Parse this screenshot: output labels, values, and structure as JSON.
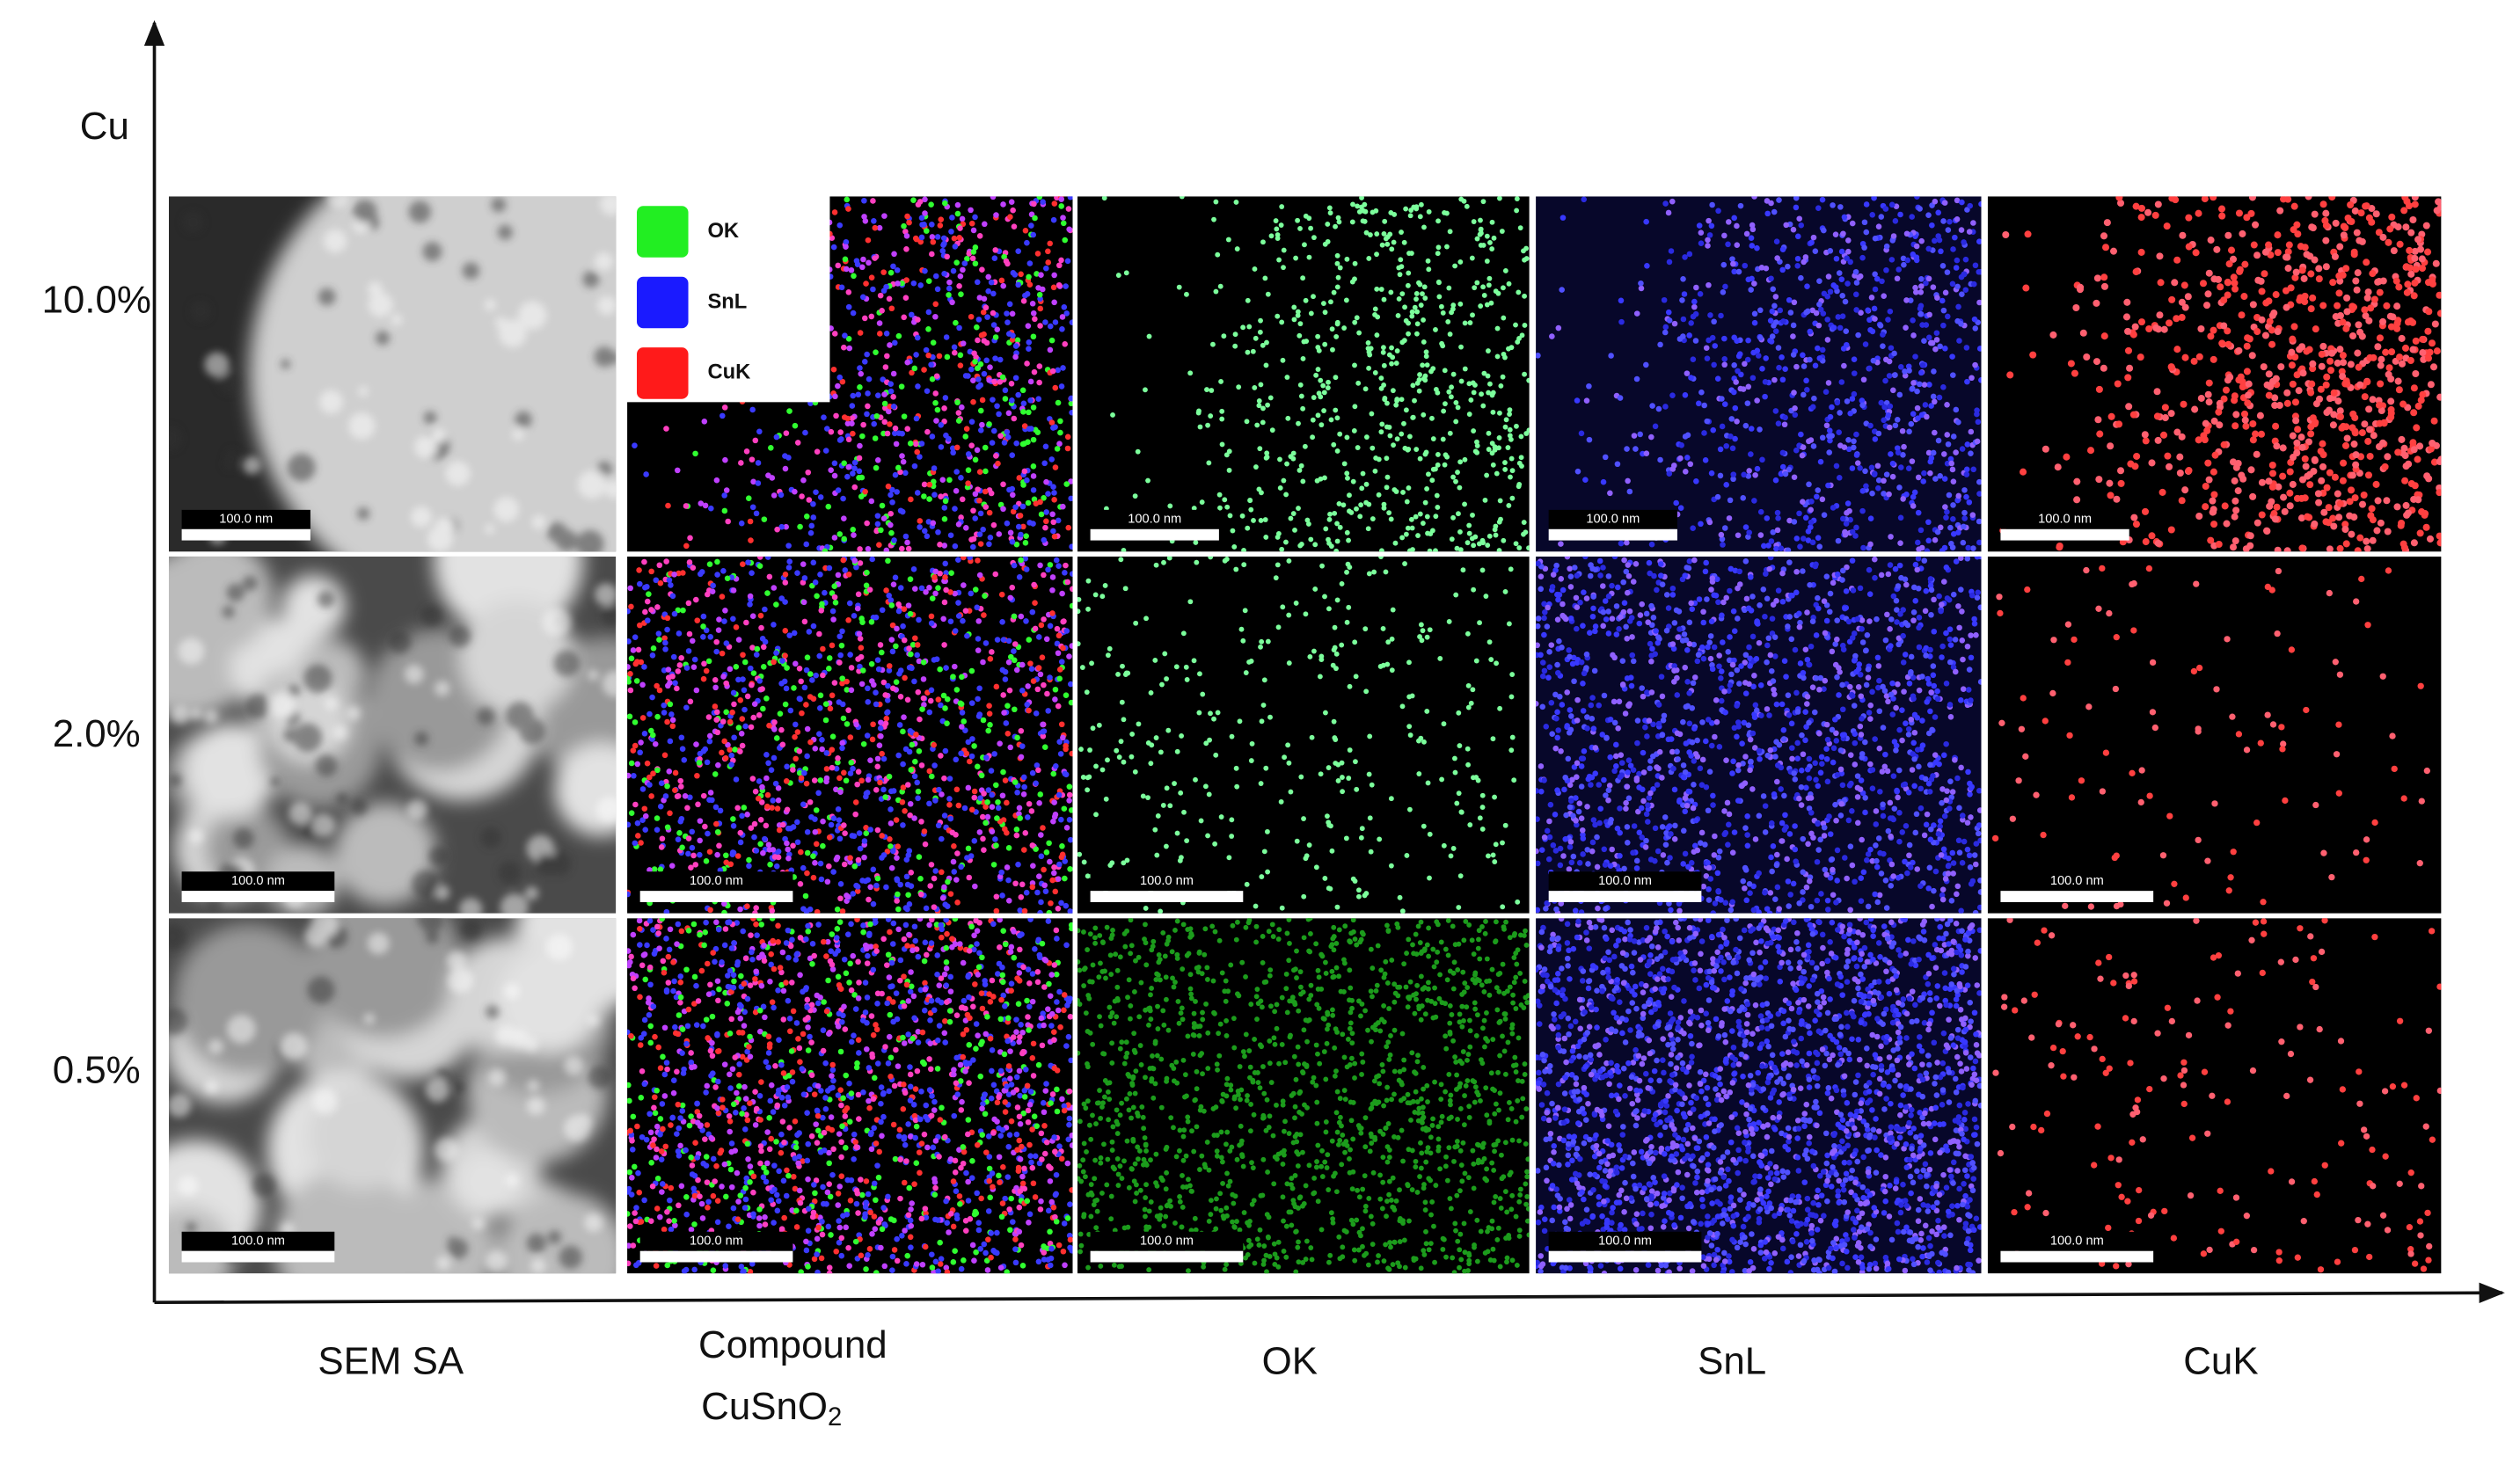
{
  "axis_label": "Cu",
  "rows": [
    {
      "label": "10.0%",
      "scale_bars": [
        "100.0 nm",
        "100.0 nm",
        "100.0 nm",
        "100.0 nm"
      ]
    },
    {
      "label": "2.0%",
      "scale_bars": [
        "100.0 nm",
        "100.0 nm",
        "100.0 nm",
        "100.0 nm",
        "100.0 nm"
      ]
    },
    {
      "label": "0.5%",
      "scale_bars": [
        "100.0 nm",
        "100.0 nm",
        "100.0 nm",
        "100.0 nm",
        "100.0 nm"
      ]
    }
  ],
  "columns": [
    "SEM SA",
    "OK",
    "SnL",
    "CuK"
  ],
  "compound_label": {
    "line1": "Compound",
    "line2": "CuSnO",
    "subscript": "2"
  },
  "legend": [
    "OK",
    "SnL",
    "CuK"
  ]
}
